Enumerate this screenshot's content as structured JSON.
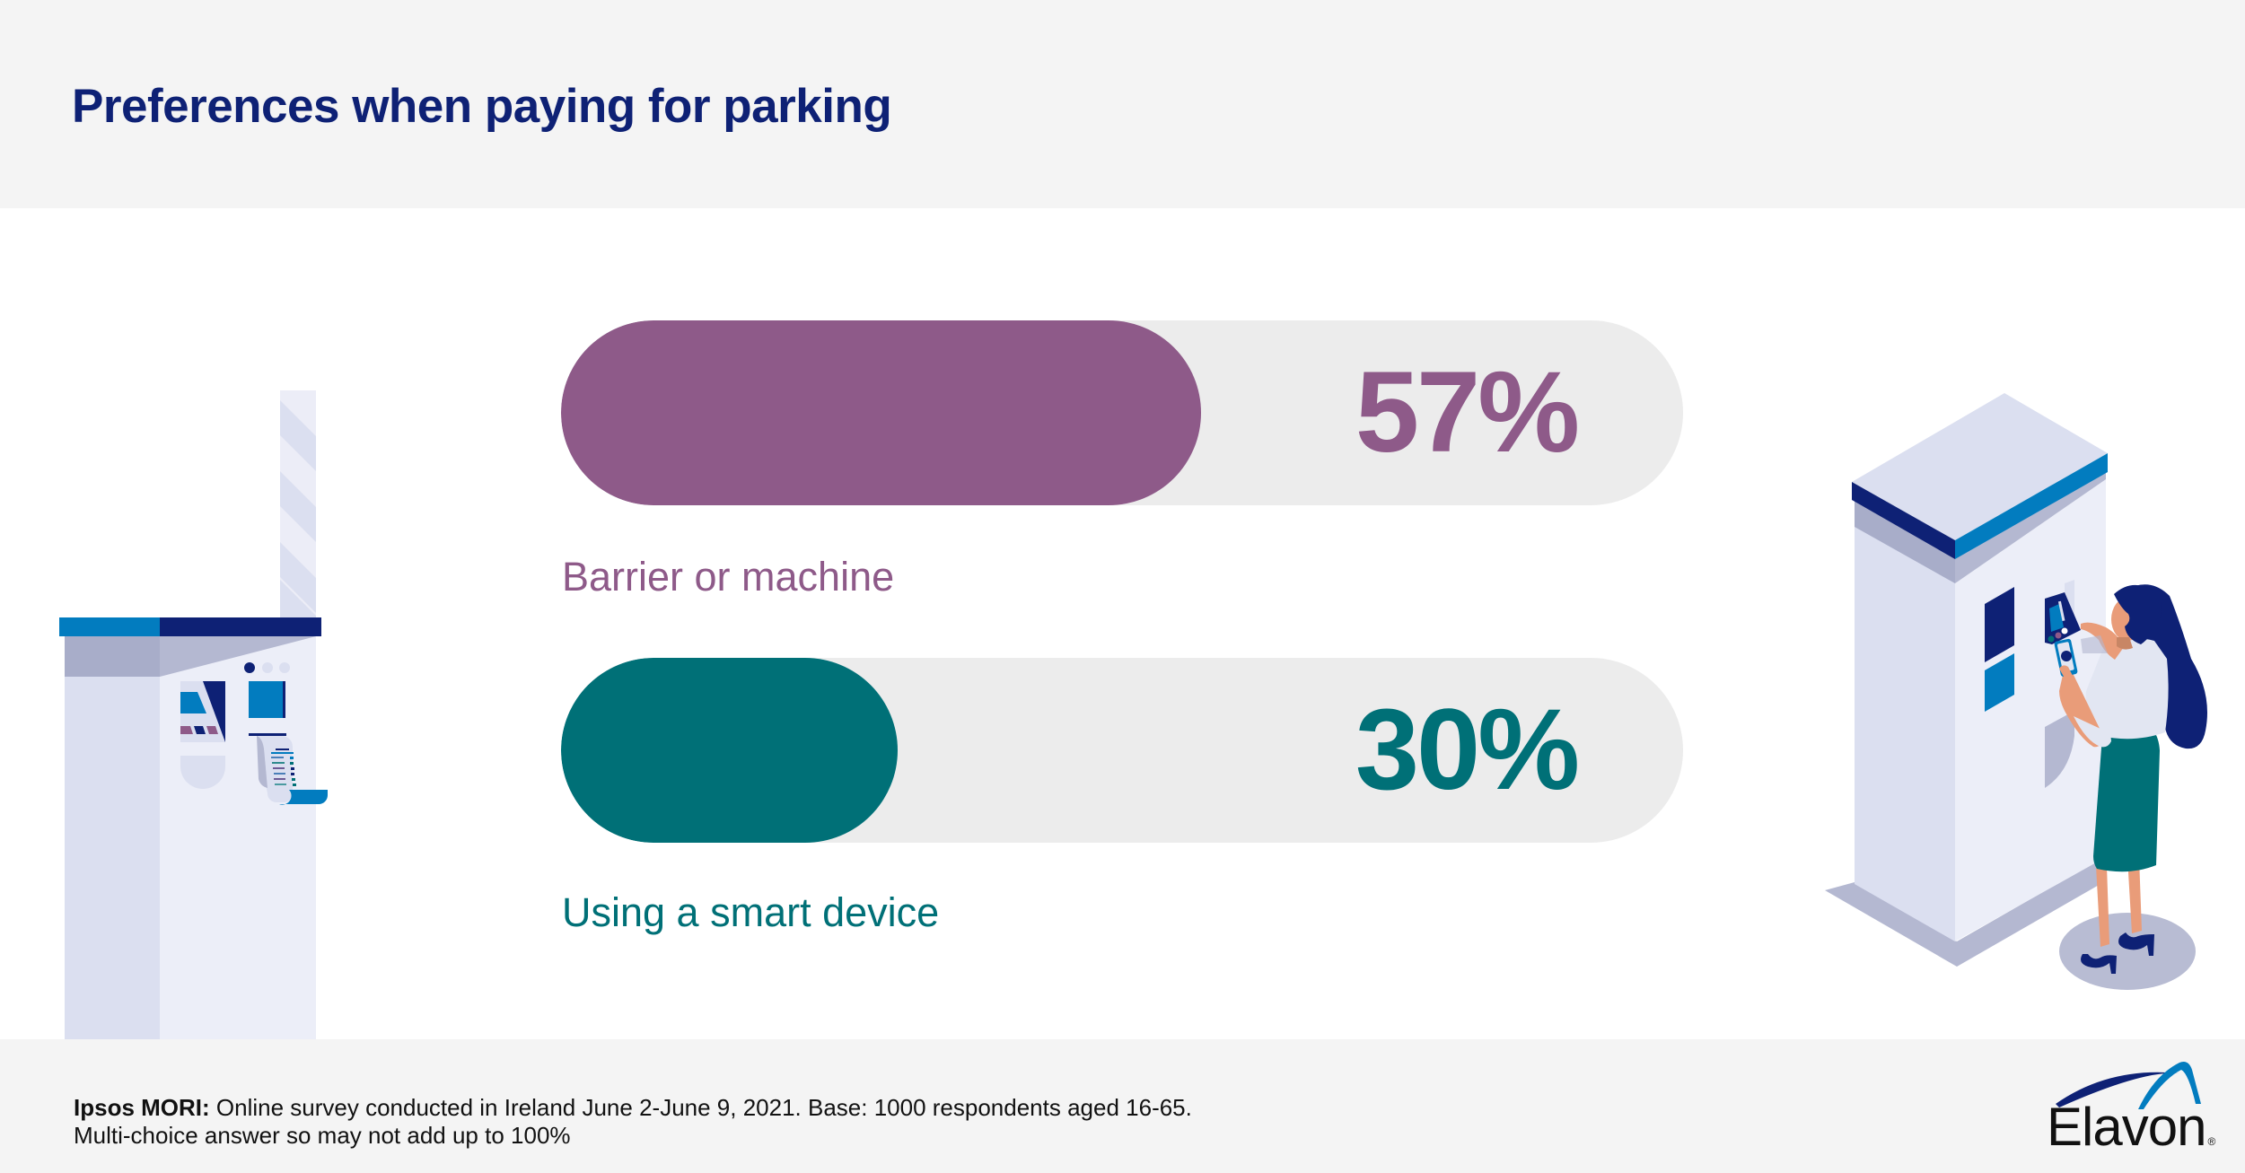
{
  "header": {
    "title": "Preferences when paying for parking"
  },
  "chart_data": {
    "type": "bar",
    "orientation": "horizontal",
    "title": "Preferences when paying for parking",
    "categories": [
      "Barrier or machine",
      "Using a smart device"
    ],
    "values": [
      57,
      30
    ],
    "value_labels": [
      "57%",
      "30%"
    ],
    "unit": "%",
    "xlim": [
      0,
      100
    ],
    "grid": false,
    "colors": [
      "#8e5a89",
      "#007077"
    ],
    "track_color": "#ececec"
  },
  "footer": {
    "source_label": "Ipsos MORI:",
    "source_text": " Online survey conducted in Ireland June 2-June 9, 2021. Base: 1000 respondents aged 16-65.",
    "note": "Multi-choice answer so may not add up to 100%"
  },
  "logo": {
    "name": "Elavon",
    "registered_mark": "®"
  },
  "colors": {
    "title": "#0e2175",
    "navy": "#0e2175",
    "blue": "#027cbf",
    "header_bg": "#f4f4f4"
  }
}
